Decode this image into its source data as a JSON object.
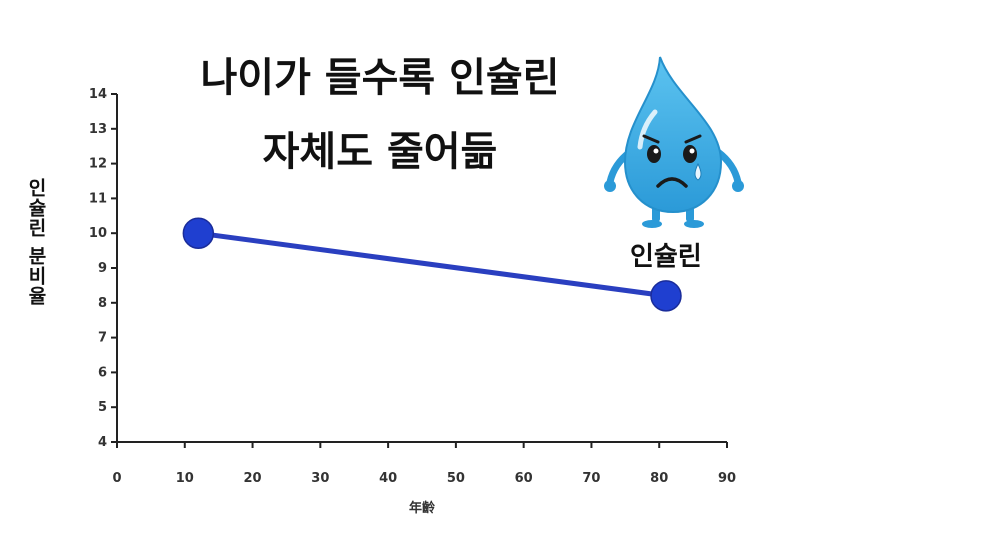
{
  "chart_data": {
    "type": "line",
    "title_line1": "나이가 들수록 인슐린",
    "title_line2": "자체도 줄어듦",
    "ylabel": "인슐린 분비율",
    "xlabel": "年齡",
    "xlim": [
      0,
      90
    ],
    "ylim": [
      4,
      14
    ],
    "xticks": [
      0,
      10,
      20,
      30,
      40,
      50,
      60,
      70,
      80,
      90
    ],
    "yticks": [
      4,
      5,
      6,
      7,
      8,
      9,
      10,
      11,
      12,
      13,
      14
    ],
    "grid": false,
    "series": [
      {
        "x": [
          12,
          81
        ],
        "y": [
          10,
          8.2
        ],
        "color": "#2a3fc0"
      }
    ],
    "mascot_label": "인슐린"
  },
  "colors": {
    "line": "#2a3fc0",
    "point": "#1f3fd0",
    "axis": "#222222",
    "drop": "#31a8e0"
  },
  "mascot_icon": "sad-water-drop-icon"
}
